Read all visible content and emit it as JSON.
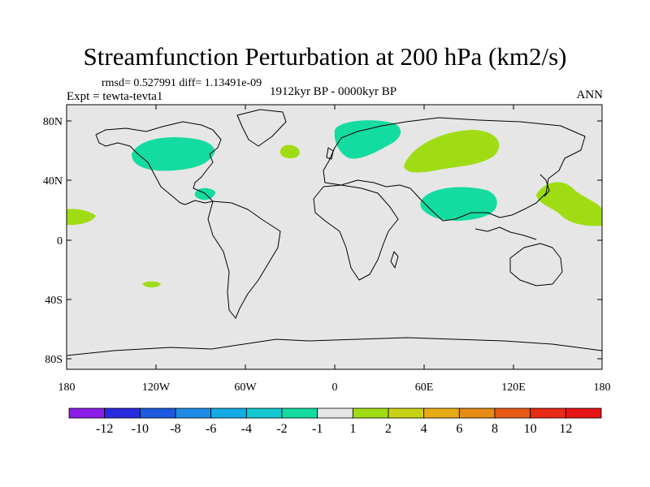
{
  "title": "Streamfunction Perturbation at 200 hPa (km2/s)",
  "stats": "rmsd= 0.527991 diff= 1.13491e-09",
  "expt": "Expt = tewta-tevta1",
  "period": "1912kyr BP - 0000kyr BP",
  "season": "ANN",
  "lat_ticks": [
    "80N",
    "40N",
    "0",
    "40S",
    "80S"
  ],
  "lon_ticks": [
    "180",
    "120W",
    "60W",
    "0",
    "60E",
    "120E",
    "180"
  ],
  "colorbar": {
    "labels": [
      "-12",
      "-10",
      "-8",
      "-6",
      "-4",
      "-2",
      "-1",
      "1",
      "2",
      "4",
      "6",
      "8",
      "10",
      "12"
    ],
    "colors": [
      "#8a1ee6",
      "#2a2ae0",
      "#1e5ae0",
      "#1e8ce6",
      "#14aae6",
      "#14c8d2",
      "#14dca0",
      "#e6e6e6",
      "#a0dc14",
      "#c8d214",
      "#e6aa14",
      "#e68c14",
      "#e65a14",
      "#e62a14",
      "#e61414"
    ]
  },
  "colors": {
    "ocean": "#e6e6e6",
    "positive": "#a0dc14",
    "negative": "#14dca0"
  }
}
